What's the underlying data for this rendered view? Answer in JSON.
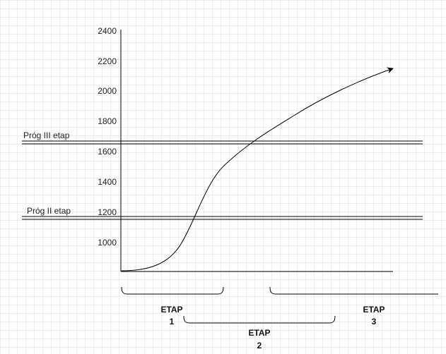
{
  "y_axis": {
    "ticks": [
      "2400",
      "2200",
      "2000",
      "1800",
      "1600",
      "1400",
      "1200",
      "1000"
    ]
  },
  "thresholds": [
    {
      "label": "Próg III etap",
      "value": 1650
    },
    {
      "label": "Próg II etap",
      "value": 1155
    }
  ],
  "stages": [
    {
      "line1": "ETAP",
      "line2": "1"
    },
    {
      "line1": "ETAP",
      "line2": "2"
    },
    {
      "line1": "ETAP",
      "line2": "3"
    }
  ],
  "curve": {
    "shape": "s-curve",
    "arrow": "end"
  }
}
